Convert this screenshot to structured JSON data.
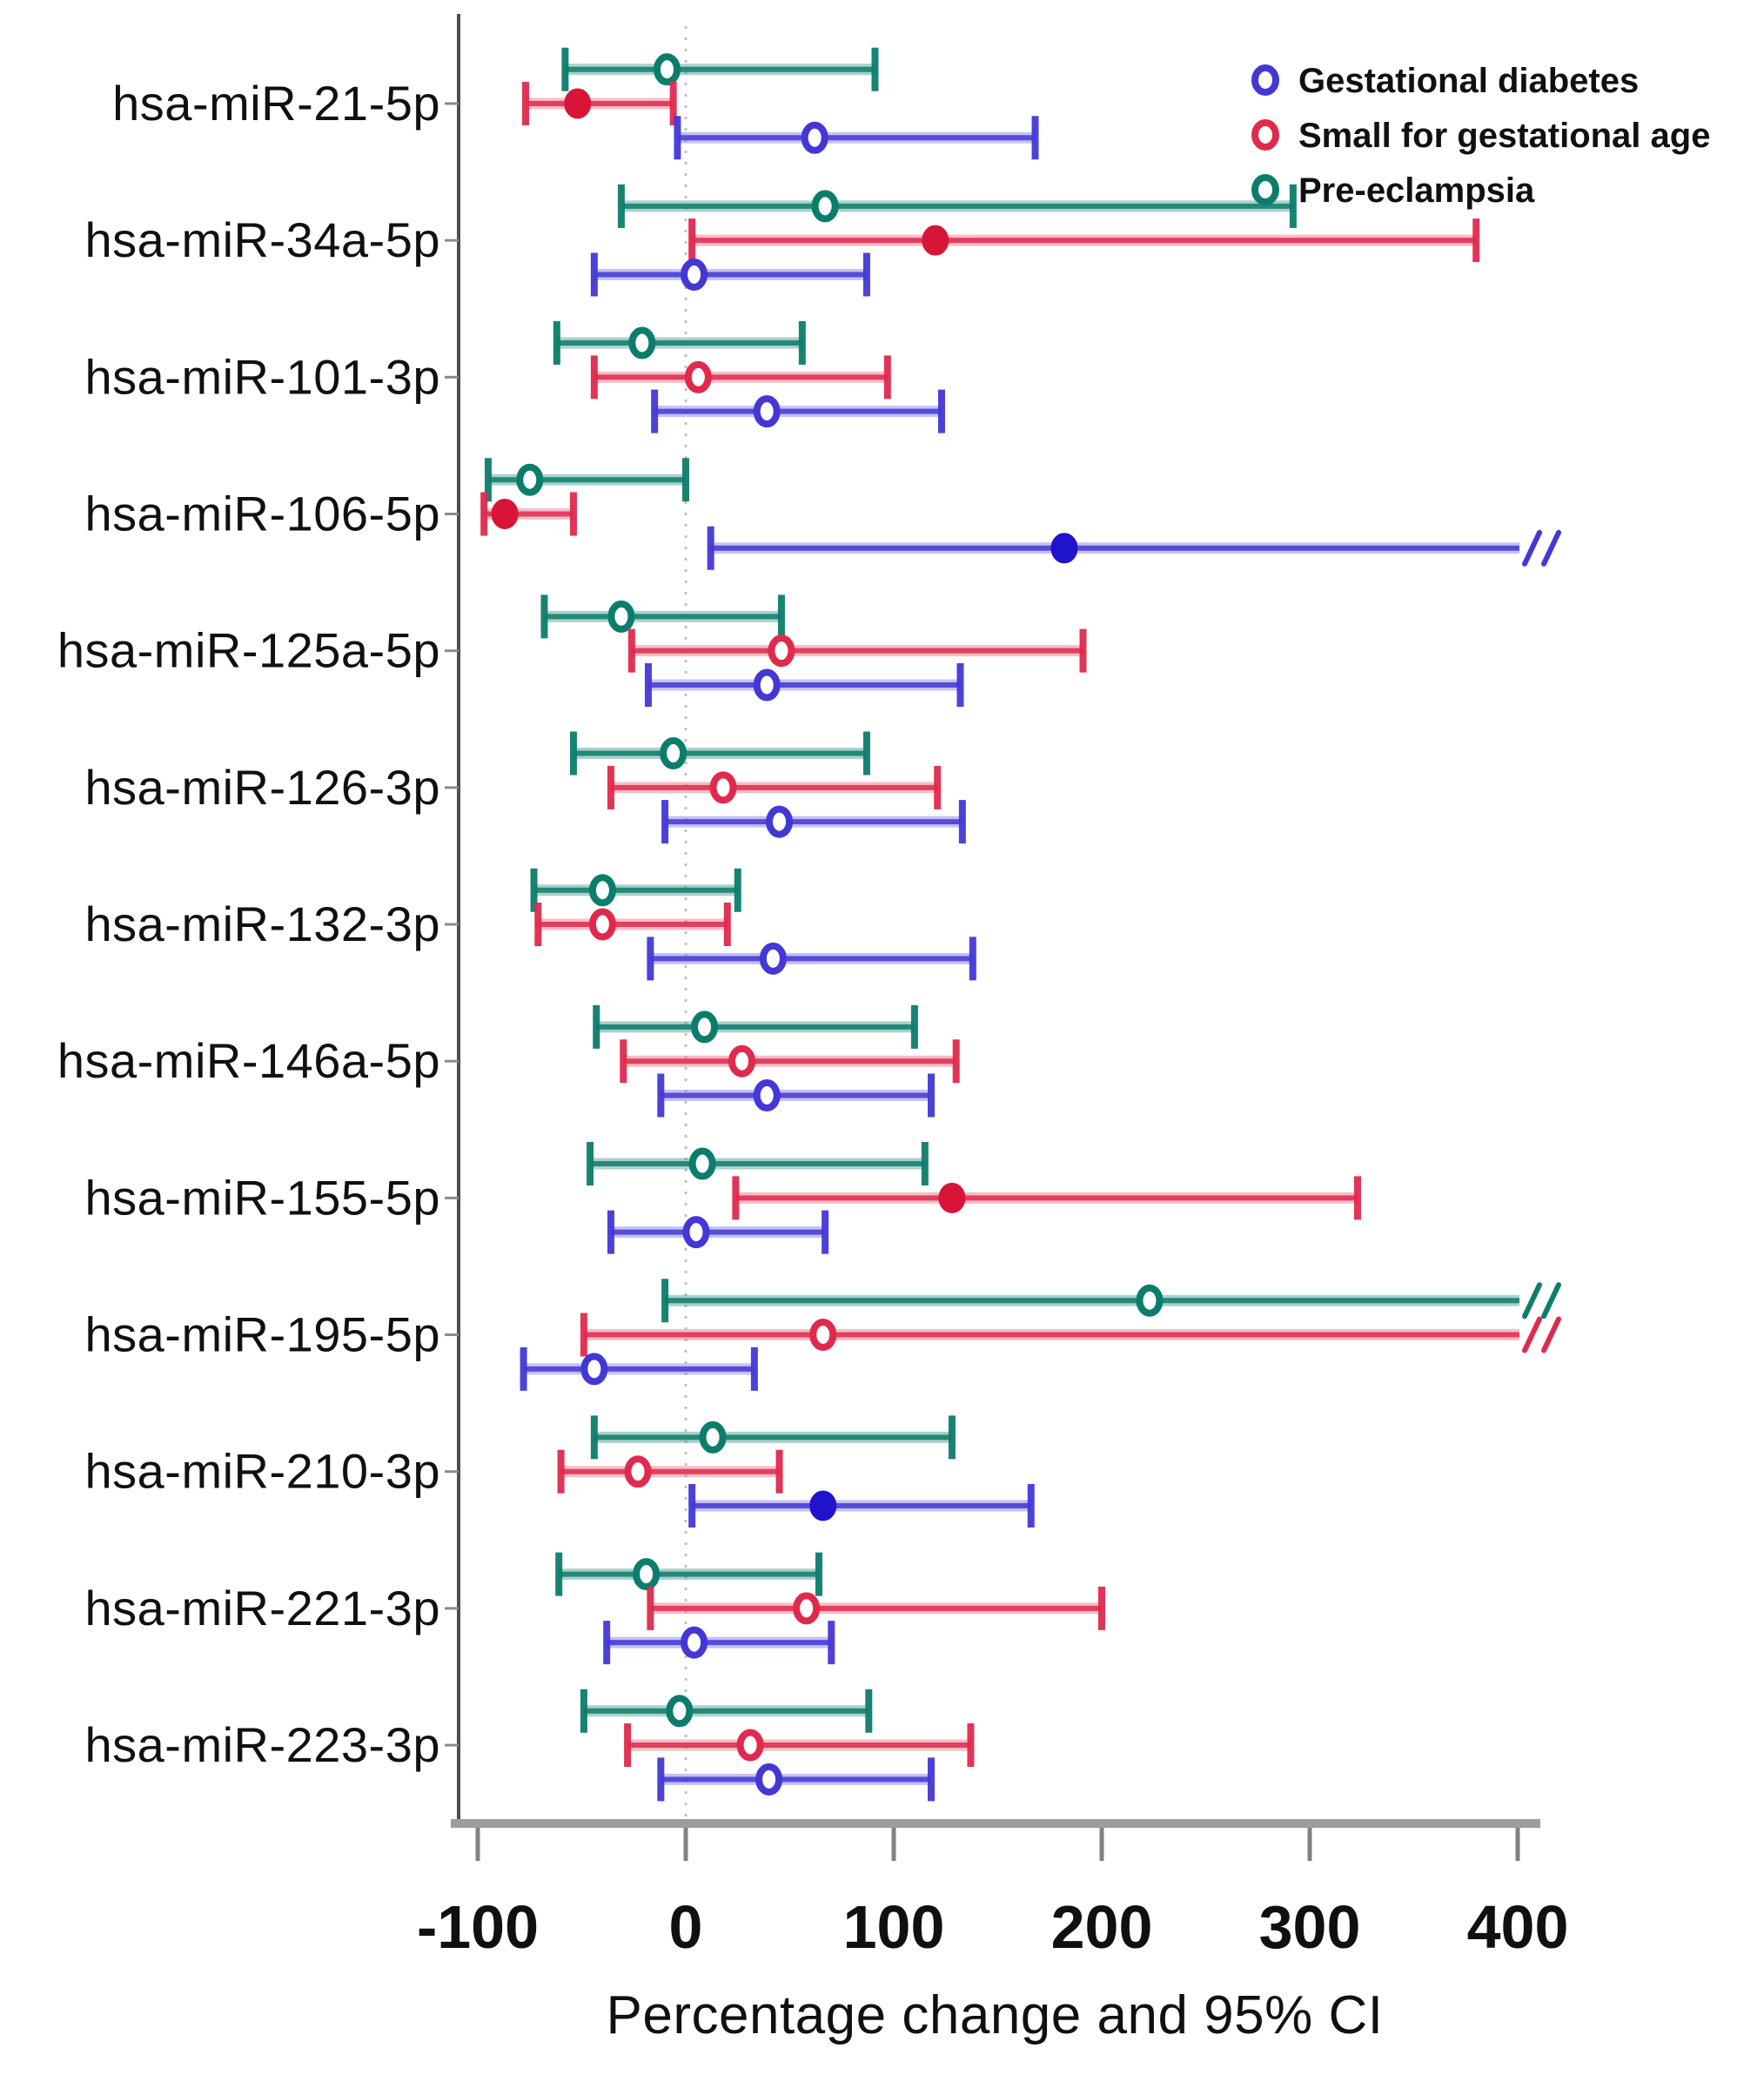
{
  "chart_data": {
    "type": "scatter",
    "subtype": "horizontal-forest-plot-95ci",
    "title": "",
    "xlabel": "Percentage change and 95% CI",
    "ylabel": "",
    "xlim": [
      -130,
      430
    ],
    "x_ticks": [
      -100,
      0,
      100,
      200,
      300,
      400
    ],
    "x_tick_labels": [
      "-100",
      "0",
      "100",
      "200",
      "300",
      "400"
    ],
    "grid": false,
    "zero_reference_line": 0,
    "legend_position": "top-right",
    "axis_break_marker": "//",
    "row_order_within_group_top_to_bottom": [
      "pe",
      "sga",
      "gd"
    ],
    "series_list": [
      {
        "key": "gd",
        "name": "Gestational diabetes",
        "color": "#4338d6",
        "line_color": "#6f66e6",
        "fill_color": "#2013cc"
      },
      {
        "key": "sga",
        "name": "Small for gestational age",
        "color": "#e02a4d",
        "line_color": "#ea5b72",
        "fill_color": "#d81538"
      },
      {
        "key": "pe",
        "name": "Pre-eclampsia",
        "color": "#0c7d6c",
        "line_color": "#2e8f7f",
        "fill_color": "#0c7d6c"
      }
    ],
    "categories": [
      "hsa-miR-21-5p",
      "hsa-miR-34a-5p",
      "hsa-miR-101-3p",
      "hsa-miR-106-5p",
      "hsa-miR-125a-5p",
      "hsa-miR-126-3p",
      "hsa-miR-132-3p",
      "hsa-miR-146a-5p",
      "hsa-miR-155-5p",
      "hsa-miR-195-5p",
      "hsa-miR-210-3p",
      "hsa-miR-221-3p",
      "hsa-miR-223-3p"
    ],
    "rows": [
      {
        "label": "hsa-miR-21-5p",
        "pe": {
          "est": -9,
          "lo": -58,
          "hi": 91,
          "filled": false
        },
        "sga": {
          "est": -52,
          "lo": -77,
          "hi": -6,
          "filled": true
        },
        "gd": {
          "est": 62,
          "lo": -4,
          "hi": 168,
          "filled": false
        }
      },
      {
        "label": "hsa-miR-34a-5p",
        "pe": {
          "est": 67,
          "lo": -31,
          "hi": 292,
          "filled": false
        },
        "sga": {
          "est": 120,
          "lo": 3,
          "hi": 380,
          "filled": true
        },
        "gd": {
          "est": 4,
          "lo": -44,
          "hi": 87,
          "filled": false
        }
      },
      {
        "label": "hsa-miR-101-3p",
        "pe": {
          "est": -21,
          "lo": -62,
          "hi": 56,
          "filled": false
        },
        "sga": {
          "est": 6,
          "lo": -44,
          "hi": 97,
          "filled": false
        },
        "gd": {
          "est": 39,
          "lo": -15,
          "hi": 123,
          "filled": false
        }
      },
      {
        "label": "hsa-miR-106-5p",
        "pe": {
          "est": -75,
          "lo": -95,
          "hi": 0,
          "filled": false
        },
        "sga": {
          "est": -87,
          "lo": -97,
          "hi": -54,
          "filled": true
        },
        "gd": {
          "est": 182,
          "lo": 12,
          "hi": 410,
          "filled": true,
          "hi_off_scale": true
        }
      },
      {
        "label": "hsa-miR-125a-5p",
        "pe": {
          "est": -31,
          "lo": -68,
          "hi": 46,
          "filled": false
        },
        "sga": {
          "est": 46,
          "lo": -26,
          "hi": 191,
          "filled": false
        },
        "gd": {
          "est": 39,
          "lo": -18,
          "hi": 132,
          "filled": false
        }
      },
      {
        "label": "hsa-miR-126-3p",
        "pe": {
          "est": -6,
          "lo": -54,
          "hi": 87,
          "filled": false
        },
        "sga": {
          "est": 18,
          "lo": -36,
          "hi": 121,
          "filled": false
        },
        "gd": {
          "est": 45,
          "lo": -10,
          "hi": 133,
          "filled": false
        }
      },
      {
        "label": "hsa-miR-132-3p",
        "pe": {
          "est": -40,
          "lo": -73,
          "hi": 25,
          "filled": false
        },
        "sga": {
          "est": -40,
          "lo": -71,
          "hi": 20,
          "filled": false
        },
        "gd": {
          "est": 42,
          "lo": -17,
          "hi": 138,
          "filled": false
        }
      },
      {
        "label": "hsa-miR-146a-5p",
        "pe": {
          "est": 9,
          "lo": -43,
          "hi": 110,
          "filled": false
        },
        "sga": {
          "est": 27,
          "lo": -30,
          "hi": 130,
          "filled": false
        },
        "gd": {
          "est": 39,
          "lo": -12,
          "hi": 118,
          "filled": false
        }
      },
      {
        "label": "hsa-miR-155-5p",
        "pe": {
          "est": 8,
          "lo": -46,
          "hi": 115,
          "filled": false
        },
        "sga": {
          "est": 128,
          "lo": 24,
          "hi": 323,
          "filled": true
        },
        "gd": {
          "est": 5,
          "lo": -36,
          "hi": 67,
          "filled": false
        }
      },
      {
        "label": "hsa-miR-195-5p",
        "pe": {
          "est": 223,
          "lo": -10,
          "hi": 410,
          "filled": false,
          "hi_off_scale": true
        },
        "sga": {
          "est": 66,
          "lo": -49,
          "hi": 410,
          "filled": false,
          "hi_off_scale": true
        },
        "gd": {
          "est": -44,
          "lo": -78,
          "hi": 33,
          "filled": false
        }
      },
      {
        "label": "hsa-miR-210-3p",
        "pe": {
          "est": 13,
          "lo": -44,
          "hi": 128,
          "filled": false
        },
        "sga": {
          "est": -23,
          "lo": -60,
          "hi": 45,
          "filled": false
        },
        "gd": {
          "est": 66,
          "lo": 3,
          "hi": 166,
          "filled": true
        }
      },
      {
        "label": "hsa-miR-221-3p",
        "pe": {
          "est": -19,
          "lo": -61,
          "hi": 64,
          "filled": false
        },
        "sga": {
          "est": 58,
          "lo": -17,
          "hi": 200,
          "filled": false
        },
        "gd": {
          "est": 4,
          "lo": -38,
          "hi": 70,
          "filled": false
        }
      },
      {
        "label": "hsa-miR-223-3p",
        "pe": {
          "est": -3,
          "lo": -49,
          "hi": 88,
          "filled": false
        },
        "sga": {
          "est": 31,
          "lo": -28,
          "hi": 137,
          "filled": false
        },
        "gd": {
          "est": 40,
          "lo": -12,
          "hi": 118,
          "filled": false
        }
      }
    ]
  }
}
